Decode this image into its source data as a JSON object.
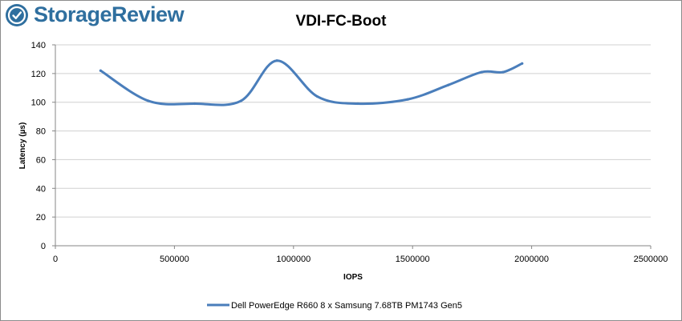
{
  "brand": {
    "name": "StorageReview",
    "icon": "storagereview-logo-icon",
    "color": "#2f6f9f"
  },
  "chart_data": {
    "type": "line",
    "title": "VDI-FC-Boot",
    "xlabel": "IOPS",
    "ylabel": "Latency (µs)",
    "xlim": [
      0,
      2500000
    ],
    "ylim": [
      0,
      140
    ],
    "xticks": [
      0,
      500000,
      1000000,
      1500000,
      2000000,
      2500000
    ],
    "yticks": [
      0,
      20,
      40,
      60,
      80,
      100,
      120,
      140
    ],
    "grid": "horizontal",
    "legend": "bottom-center",
    "series": [
      {
        "name": "Dell PowerEdge R660 8 x Samsung 7.68TB PM1743 Gen5",
        "color": "#4a7ebb",
        "x": [
          190000,
          390000,
          585000,
          780000,
          930000,
          1100000,
          1270000,
          1480000,
          1650000,
          1790000,
          1880000,
          1960000
        ],
        "y": [
          122,
          101,
          99,
          101,
          129,
          104,
          99,
          102,
          112,
          121,
          121,
          127
        ]
      }
    ]
  }
}
